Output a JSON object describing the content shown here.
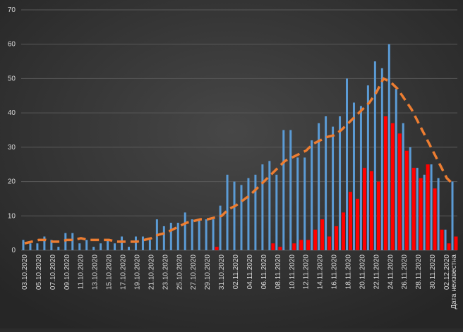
{
  "chart_data": {
    "type": "bar",
    "categories": [
      "03.10.2020",
      null,
      "05.10.2020",
      null,
      "07.10.2020",
      null,
      "09.10.2020",
      null,
      "11.10.2020",
      null,
      "13.10.2020",
      null,
      "15.10.2020",
      null,
      "17.10.2020",
      null,
      "19.10.2020",
      null,
      "21.10.2020",
      null,
      "23.10.2020",
      null,
      "25.10.2020",
      null,
      "27.10.2020",
      null,
      "29.10.2020",
      null,
      "31.10.2020",
      null,
      "02.11.2020",
      null,
      "04.11.2020",
      null,
      "06.11.2020",
      null,
      "08.11.2020",
      null,
      "10.11.2020",
      null,
      "12.11.2020",
      null,
      "14.11.2020",
      null,
      "16.11.2020",
      null,
      "18.11.2020",
      null,
      "20.11.2020",
      null,
      "22.11.2020",
      null,
      "24.11.2020",
      null,
      "26.11.2020",
      null,
      "28.11.2020",
      null,
      "30.11.2020",
      null,
      "02.12.2020",
      "Дата неизвестна"
    ],
    "series": [
      {
        "color": "#5b9bd5",
        "values": [
          3,
          2,
          2,
          4,
          3,
          1,
          5,
          5,
          2,
          3,
          1,
          2,
          3,
          2,
          4,
          1,
          4,
          4,
          3,
          9,
          7,
          8,
          8,
          11,
          9,
          9,
          9,
          9,
          13,
          22,
          20,
          19,
          21,
          22,
          25,
          26,
          22,
          35,
          35,
          27,
          27,
          32,
          37,
          39,
          36,
          39,
          50,
          43,
          42,
          48,
          55,
          53,
          60,
          47,
          37,
          30,
          24,
          22,
          25,
          21,
          6,
          20
        ]
      },
      {
        "color": "#ff0000",
        "values": [
          0,
          0,
          0,
          0,
          0,
          0,
          0,
          0,
          0,
          0,
          0,
          0,
          0,
          0,
          0,
          0,
          0,
          0,
          0,
          0,
          0,
          0,
          0,
          0,
          0,
          0,
          0,
          1,
          0,
          0,
          0,
          0,
          0,
          0,
          0,
          2,
          1,
          0,
          2,
          3,
          3,
          6,
          9,
          4,
          7,
          11,
          17,
          15,
          24,
          23,
          20,
          39,
          37,
          34,
          29,
          24,
          21,
          25,
          18,
          6,
          2,
          4
        ]
      },
      {
        "type": "line",
        "color": "#ed7d31",
        "values": [
          2,
          2.5,
          3,
          3,
          2.5,
          2.5,
          3,
          3,
          3.5,
          3,
          3,
          3,
          3,
          2.5,
          2.5,
          2.5,
          2.5,
          3,
          3.5,
          4.5,
          5,
          6,
          7,
          8,
          8.5,
          9,
          9,
          9.5,
          10,
          12,
          13,
          14.5,
          16,
          18,
          20,
          22,
          24,
          26,
          27,
          28,
          29,
          31,
          32,
          33,
          33.5,
          35,
          37,
          39,
          41,
          43,
          46,
          50,
          49,
          47,
          44,
          41,
          37,
          33,
          29,
          25,
          21,
          19
        ]
      }
    ],
    "ylim": [
      0,
      70
    ],
    "yticks": [
      0,
      10,
      20,
      30,
      40,
      50,
      60,
      70
    ],
    "grid": true
  }
}
